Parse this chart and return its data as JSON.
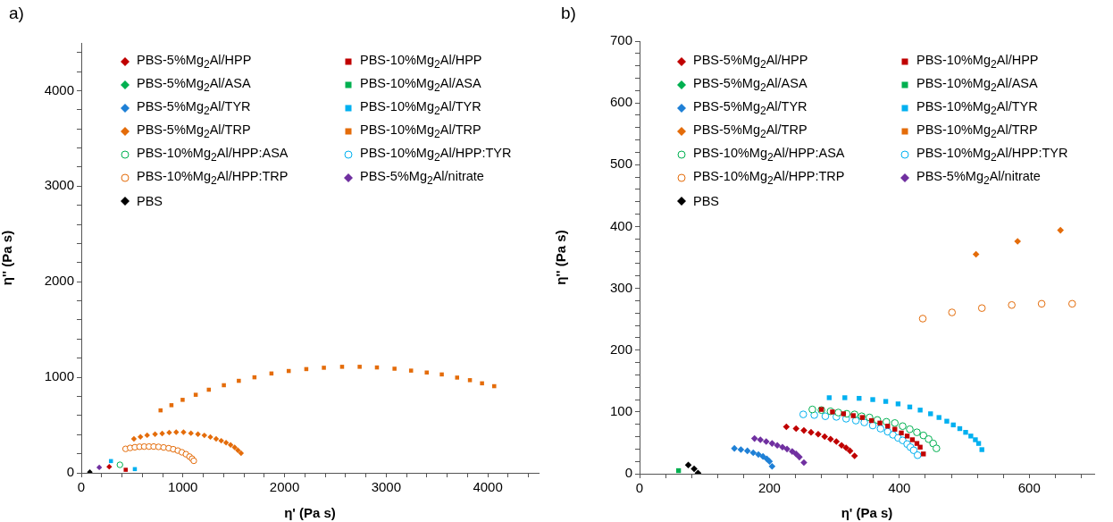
{
  "chart_data": [
    {
      "type": "scatter",
      "title": "a)",
      "xlabel": "η' (Pa s)",
      "ylabel": "η'' (Pa s)",
      "xlim": [
        0,
        4500
      ],
      "ylim": [
        0,
        4500
      ],
      "legend": "top",
      "grid": false,
      "xticks": [
        0,
        {
          "value": 200,
          "label": null
        },
        {
          "value": 400,
          "label": null
        },
        {
          "value": 600,
          "label": null
        },
        {
          "value": 800,
          "label": null
        },
        1000,
        {
          "value": 1200,
          "label": null
        },
        {
          "value": 1400,
          "label": null
        },
        {
          "value": 1600,
          "label": null
        },
        {
          "value": 1800,
          "label": null
        },
        2000,
        {
          "value": 2200,
          "label": null
        },
        {
          "value": 2400,
          "label": null
        },
        {
          "value": 2600,
          "label": null
        },
        {
          "value": 2800,
          "label": null
        },
        3000,
        {
          "value": 3200,
          "label": null
        },
        {
          "value": 3400,
          "label": null
        },
        {
          "value": 3600,
          "label": null
        },
        {
          "value": 3800,
          "label": null
        },
        4000,
        {
          "value": 4200,
          "label": null
        },
        {
          "value": 4400,
          "label": null
        }
      ],
      "yticks": [
        0,
        {
          "value": 200,
          "label": null
        },
        {
          "value": 400,
          "label": null
        },
        {
          "value": 600,
          "label": null
        },
        {
          "value": 800,
          "label": null
        },
        1000,
        {
          "value": 1200,
          "label": null
        },
        {
          "value": 1400,
          "label": null
        },
        {
          "value": 1600,
          "label": null
        },
        {
          "value": 1800,
          "label": null
        },
        2000,
        {
          "value": 2200,
          "label": null
        },
        {
          "value": 2400,
          "label": null
        },
        {
          "value": 2600,
          "label": null
        },
        {
          "value": 2800,
          "label": null
        },
        3000,
        {
          "value": 3200,
          "label": null
        },
        {
          "value": 3400,
          "label": null
        },
        {
          "value": 3600,
          "label": null
        },
        {
          "value": 3800,
          "label": null
        },
        4000,
        {
          "value": 4200,
          "label": null
        },
        {
          "value": 4400,
          "label": null
        }
      ],
      "series": [
        {
          "name": "PBS-5%Mg$_{2}$Al/HPP",
          "color": "#c00000",
          "marker": "diamond",
          "x": [
            275
          ],
          "values": [
            64
          ]
        },
        {
          "name": "PBS-10%Mg$_{2}$Al/HPP",
          "color": "#c00000",
          "marker": "square",
          "x": [
            437
          ],
          "values": [
            32
          ]
        },
        {
          "name": "PBS-5%Mg$_{2}$Al/ASA",
          "color": "#00b050",
          "marker": "diamond"
        },
        {
          "name": "PBS-10%Mg$_{2}$Al/ASA",
          "color": "#00b050",
          "marker": "square"
        },
        {
          "name": "PBS-5%Mg$_{2}$Al/TYR",
          "color": "#1f80d6",
          "marker": "diamond"
        },
        {
          "name": "PBS-10%Mg$_{2}$Al/TYR",
          "color": "#00b0f0",
          "marker": "square",
          "x": [
            292,
            527
          ],
          "values": [
            123,
            39
          ]
        },
        {
          "name": "PBS-5%Mg$_{2}$Al/TRP",
          "color": "#e46c0a",
          "marker": "diamond",
          "x": [
            518,
            582,
            648,
            726,
            796,
            865,
            934,
            1006,
            1079,
            1148,
            1211,
            1270,
            1327,
            1377,
            1425,
            1469,
            1509,
            1541,
            1572
          ],
          "values": [
            355,
            376,
            394,
            405,
            412,
            422,
            425,
            425,
            415,
            405,
            392,
            375,
            355,
            336,
            316,
            292,
            266,
            236,
            206
          ]
        },
        {
          "name": "PBS-10%Mg$_{2}$Al/TRP",
          "color": "#e46c0a",
          "marker": "square",
          "x": [
            780,
            887,
            997,
            1126,
            1255,
            1403,
            1550,
            1704,
            1871,
            2041,
            2214,
            2387,
            2566,
            2739,
            2909,
            3082,
            3245,
            3399,
            3547,
            3698,
            3824,
            3943,
            4063
          ],
          "values": [
            654,
            708,
            764,
            817,
            870,
            917,
            963,
            1000,
            1040,
            1066,
            1086,
            1100,
            1110,
            1110,
            1103,
            1090,
            1070,
            1050,
            1030,
            997,
            970,
            937,
            907
          ]
        },
        {
          "name": "PBS-10%Mg$_{2}$Al/HPP:ASA",
          "color": "#00b050",
          "marker": "circle",
          "x": [
            380
          ],
          "values": [
            84
          ]
        },
        {
          "name": "PBS-10%Mg$_{2}$Al/HPP:TYR",
          "color": "#00b0f0",
          "marker": "circle"
        },
        {
          "name": "PBS-10%Mg$_{2}$Al/HPP:TRP",
          "color": "#e46c0a",
          "marker": "circle",
          "x": [
            436,
            481,
            527,
            573,
            619,
            666,
            712,
            760,
            810,
            860,
            905,
            950,
            990,
            1030,
            1065,
            1090,
            1107
          ],
          "values": [
            251,
            261,
            268,
            273,
            275,
            275,
            275,
            272,
            266,
            258,
            247,
            233,
            215,
            195,
            170,
            148,
            126
          ]
        },
        {
          "name": "PBS-5%Mg$_{2}$Al/nitrate",
          "color": "#7030a0",
          "marker": "diamond",
          "x": [
            177
          ],
          "values": [
            57
          ]
        },
        {
          "name": "PBS",
          "color": "#000000",
          "marker": "diamond",
          "x": [
            84
          ],
          "values": [
            8
          ]
        }
      ]
    },
    {
      "type": "scatter",
      "title": "b)",
      "xlabel": "η' (Pa s)",
      "ylabel": "η'' (Pa s)",
      "xlim": [
        0,
        700
      ],
      "ylim": [
        0,
        700
      ],
      "legend": "top",
      "grid": false,
      "xticks": [
        0,
        {
          "value": 40,
          "label": null
        },
        {
          "value": 80,
          "label": null
        },
        {
          "value": 120,
          "label": null
        },
        {
          "value": 160,
          "label": null
        },
        200,
        {
          "value": 240,
          "label": null
        },
        {
          "value": 280,
          "label": null
        },
        {
          "value": 320,
          "label": null
        },
        {
          "value": 360,
          "label": null
        },
        400,
        {
          "value": 440,
          "label": null
        },
        {
          "value": 480,
          "label": null
        },
        {
          "value": 520,
          "label": null
        },
        {
          "value": 560,
          "label": null
        },
        600,
        {
          "value": 640,
          "label": null
        },
        {
          "value": 680,
          "label": null
        }
      ],
      "yticks": [
        0,
        {
          "value": 20,
          "label": null
        },
        {
          "value": 40,
          "label": null
        },
        {
          "value": 60,
          "label": null
        },
        {
          "value": 80,
          "label": null
        },
        100,
        {
          "value": 120,
          "label": null
        },
        {
          "value": 140,
          "label": null
        },
        {
          "value": 160,
          "label": null
        },
        {
          "value": 180,
          "label": null
        },
        200,
        {
          "value": 220,
          "label": null
        },
        {
          "value": 240,
          "label": null
        },
        {
          "value": 260,
          "label": null
        },
        {
          "value": 280,
          "label": null
        },
        300,
        {
          "value": 320,
          "label": null
        },
        {
          "value": 340,
          "label": null
        },
        {
          "value": 360,
          "label": null
        },
        {
          "value": 380,
          "label": null
        },
        400,
        {
          "value": 420,
          "label": null
        },
        {
          "value": 440,
          "label": null
        },
        {
          "value": 460,
          "label": null
        },
        {
          "value": 480,
          "label": null
        },
        500,
        {
          "value": 520,
          "label": null
        },
        {
          "value": 540,
          "label": null
        },
        {
          "value": 560,
          "label": null
        },
        {
          "value": 580,
          "label": null
        },
        600,
        {
          "value": 620,
          "label": null
        },
        {
          "value": 640,
          "label": null
        },
        {
          "value": 660,
          "label": null
        },
        {
          "value": 680,
          "label": null
        },
        700
      ],
      "series": [
        {
          "name": "PBS-5%Mg$_{2}$Al/HPP",
          "color": "#c00000",
          "marker": "diamond",
          "x": [
            226,
            241,
            253,
            264,
            275,
            285,
            294,
            303,
            311,
            318,
            324,
            331
          ],
          "values": [
            76,
            73,
            70,
            67,
            64,
            60,
            56,
            52,
            46,
            42,
            37,
            29
          ]
        },
        {
          "name": "PBS-10%Mg$_{2}$Al/HPP",
          "color": "#c00000",
          "marker": "square",
          "x": [
            280,
            297,
            314,
            329,
            343,
            357,
            370,
            382,
            393,
            403,
            412,
            420,
            427,
            432,
            437
          ],
          "values": [
            104,
            100,
            97,
            94,
            91,
            86,
            82,
            77,
            72,
            66,
            61,
            55,
            49,
            43,
            32
          ]
        },
        {
          "name": "PBS-5%Mg$_{2}$Al/ASA",
          "color": "#00b050",
          "marker": "diamond"
        },
        {
          "name": "PBS-10%Mg$_{2}$Al/ASA",
          "color": "#00b050",
          "marker": "square",
          "x": [
            60
          ],
          "values": [
            5
          ]
        },
        {
          "name": "PBS-5%Mg$_{2}$Al/TYR",
          "color": "#1f80d6",
          "marker": "diamond",
          "x": [
            146,
            156,
            166,
            175,
            183,
            190,
            196,
            200,
            204
          ],
          "values": [
            41,
            39,
            37,
            34,
            31,
            28,
            24,
            20,
            12
          ]
        },
        {
          "name": "PBS-10%Mg$_{2}$Al/TYR",
          "color": "#00b0f0",
          "marker": "square",
          "x": [
            292,
            316,
            338,
            359,
            379,
            398,
            416,
            432,
            448,
            461,
            473,
            483,
            493,
            502,
            510,
            517,
            522,
            527
          ],
          "values": [
            123,
            123,
            122,
            120,
            117,
            113,
            108,
            103,
            97,
            91,
            85,
            79,
            73,
            67,
            61,
            55,
            49,
            39
          ]
        },
        {
          "name": "PBS-5%Mg$_{2}$Al/TRP",
          "color": "#e46c0a",
          "marker": "diamond",
          "x": [
            518,
            582,
            648
          ],
          "values": [
            355,
            376,
            394
          ]
        },
        {
          "name": "PBS-10%Mg$_{2}$Al/TRP",
          "color": "#e46c0a",
          "marker": "square"
        },
        {
          "name": "PBS-10%Mg$_{2}$Al/HPP:ASA",
          "color": "#00b050",
          "marker": "circle",
          "x": [
            266,
            280,
            294,
            306,
            319,
            331,
            342,
            354,
            366,
            380,
            393,
            405,
            416,
            427,
            437,
            445,
            452,
            457
          ],
          "values": [
            104,
            103,
            101,
            99,
            97,
            96,
            93,
            91,
            87,
            84,
            82,
            77,
            72,
            67,
            62,
            56,
            49,
            41
          ]
        },
        {
          "name": "PBS-10%Mg$_{2}$Al/HPP:TYR",
          "color": "#00b0f0",
          "marker": "circle",
          "x": [
            252,
            269,
            286,
            303,
            318,
            333,
            346,
            359,
            371,
            382,
            390,
            398,
            405,
            412,
            417,
            422,
            428
          ],
          "values": [
            96,
            95,
            93,
            92,
            89,
            86,
            83,
            78,
            73,
            68,
            63,
            58,
            54,
            48,
            43,
            38,
            30
          ]
        },
        {
          "name": "PBS-10%Mg$_{2}$Al/HPP:TRP",
          "color": "#e46c0a",
          "marker": "circle",
          "x": [
            436,
            481,
            527,
            573,
            619,
            666
          ],
          "values": [
            251,
            261,
            268,
            273,
            275,
            275
          ]
        },
        {
          "name": "PBS-5%Mg$_{2}$Al/nitrate",
          "color": "#7030a0",
          "marker": "diamond",
          "x": [
            177,
            186,
            195,
            204,
            212,
            220,
            227,
            235,
            241,
            246,
            253
          ],
          "values": [
            57,
            55,
            52,
            49,
            46,
            43,
            40,
            36,
            32,
            27,
            18
          ]
        },
        {
          "name": "PBS",
          "color": "#000000",
          "marker": "diamond",
          "x": [
            75,
            84,
            90
          ],
          "values": [
            14,
            8,
            1
          ]
        }
      ]
    }
  ]
}
